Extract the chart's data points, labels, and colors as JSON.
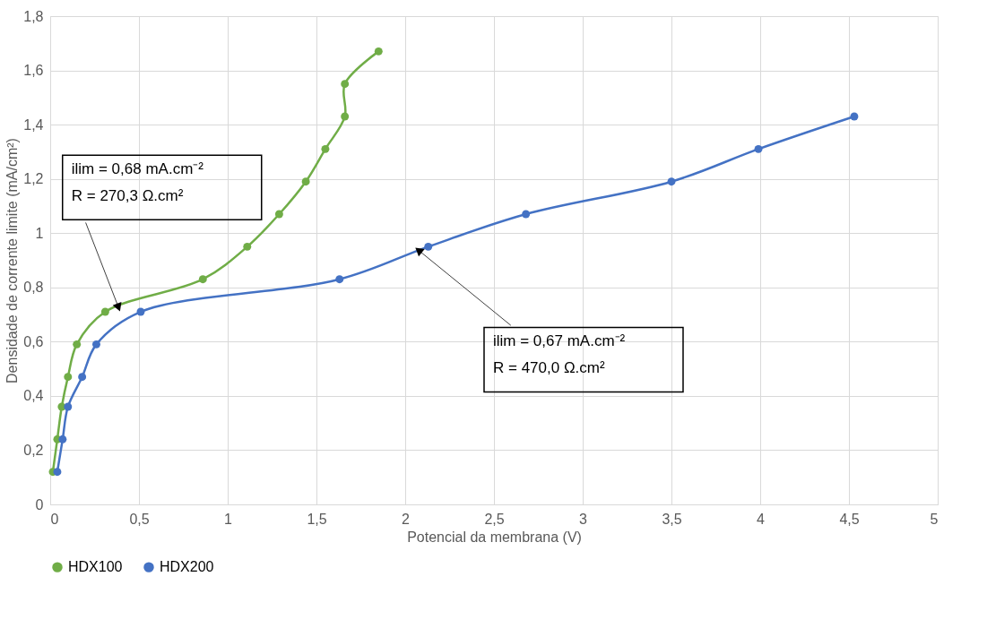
{
  "chart_data": {
    "type": "line",
    "xlabel": "Potencial da membrana (V)",
    "ylabel": "Densidade de corrente limite (mA/cm²)",
    "xlim": [
      0,
      5
    ],
    "ylim": [
      0,
      1.8
    ],
    "xticks": [
      0,
      {
        "value": 0.5,
        "label": "0,5"
      },
      1,
      {
        "value": 1.5,
        "label": "1,5"
      },
      2,
      {
        "value": 2.5,
        "label": "2,5"
      },
      3,
      {
        "value": 3.5,
        "label": "3,5"
      },
      4,
      {
        "value": 4.5,
        "label": "4,5"
      },
      5
    ],
    "yticks": [
      0,
      {
        "value": 0.2,
        "label": "0,2"
      },
      {
        "value": 0.4,
        "label": "0,4"
      },
      {
        "value": 0.6,
        "label": "0,6"
      },
      {
        "value": 0.8,
        "label": "0,8"
      },
      1,
      {
        "value": 1.2,
        "label": "1,2"
      },
      {
        "value": 1.4,
        "label": "1,4"
      },
      {
        "value": 1.6,
        "label": "1,6"
      },
      {
        "value": 1.8,
        "label": "1,8"
      }
    ],
    "grid": true,
    "legend": "bottom",
    "marker": "circle",
    "line_style": "solid",
    "series": [
      {
        "name": "HDX100",
        "color": "#70ad47",
        "x": [
          0.015,
          0.04,
          0.065,
          0.1,
          0.15,
          0.31,
          0.86,
          1.11,
          1.29,
          1.44,
          1.55,
          1.66,
          1.66,
          1.85
        ],
        "values": [
          0.12,
          0.24,
          0.36,
          0.47,
          0.59,
          0.71,
          0.83,
          0.95,
          1.07,
          1.19,
          1.31,
          1.43,
          1.55,
          1.67
        ]
      },
      {
        "name": "HDX200",
        "color": "#4472c4",
        "x": [
          0.04,
          0.07,
          0.1,
          0.18,
          0.26,
          0.51,
          1.63,
          2.13,
          2.68,
          3.5,
          3.99,
          4.53
        ],
        "values": [
          0.12,
          0.24,
          0.36,
          0.47,
          0.59,
          0.71,
          0.83,
          0.95,
          1.07,
          1.19,
          1.31,
          1.43
        ]
      }
    ],
    "annotations": [
      {
        "text": "ilim = 0,68 mA.cm⁻²\nR = 270,3 Ω.cm²",
        "x": 0.385,
        "y": 0.726
      },
      {
        "text": "ilim = 0,67 mA.cm⁻²\nR = 470,0 Ω.cm²",
        "x": 2.075,
        "y": 0.937
      }
    ]
  }
}
